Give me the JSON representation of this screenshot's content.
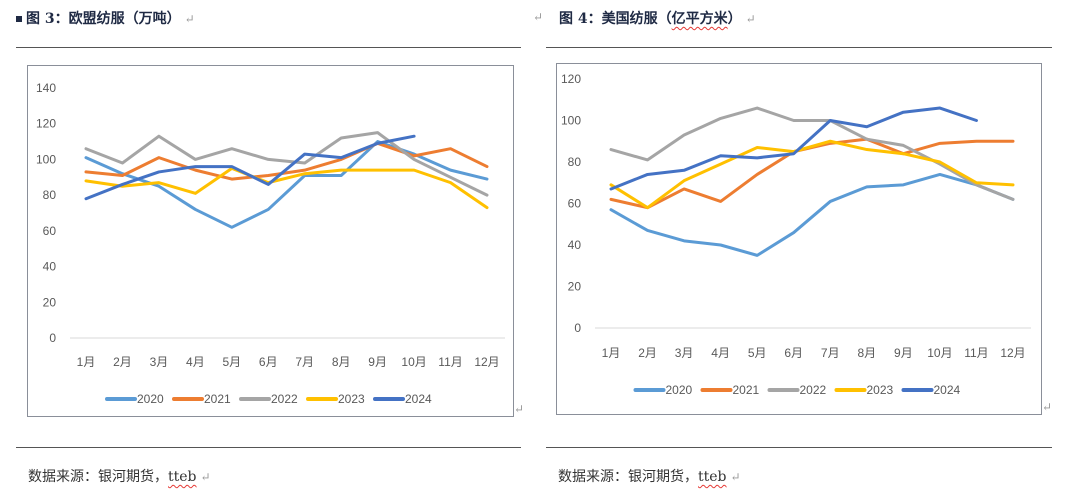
{
  "figures": [
    {
      "title": "图 3：欧盟纺服（万吨）",
      "source": "数据来源：银河期货，",
      "source_link": "tteb"
    },
    {
      "title": "图 4：美国纺服（",
      "title_squiggle": "亿平方米",
      "title_end": "）",
      "source": "数据来源：银河期货，",
      "source_link": "tteb"
    }
  ],
  "para_mark": "↵",
  "chart_data": [
    {
      "type": "line",
      "title": "欧盟纺服（万吨）",
      "xlabel": "",
      "ylabel": "",
      "categories": [
        "1月",
        "2月",
        "3月",
        "4月",
        "5月",
        "6月",
        "7月",
        "8月",
        "9月",
        "10月",
        "11月",
        "12月"
      ],
      "ylim": [
        0,
        140
      ],
      "yticks": [
        0,
        20,
        40,
        60,
        80,
        100,
        120,
        140
      ],
      "grid": false,
      "legend": "bottom",
      "series": [
        {
          "name": "2020",
          "color": "#5b9bd5",
          "values": [
            101,
            92,
            85,
            72,
            62,
            72,
            91,
            91,
            110,
            103,
            94,
            89
          ]
        },
        {
          "name": "2021",
          "color": "#ed7d31",
          "values": [
            93,
            91,
            101,
            94,
            89,
            91,
            94,
            100,
            109,
            102,
            106,
            96
          ]
        },
        {
          "name": "2022",
          "color": "#a5a5a5",
          "values": [
            106,
            98,
            113,
            100,
            106,
            100,
            98,
            112,
            115,
            100,
            90,
            80
          ]
        },
        {
          "name": "2023",
          "color": "#ffc000",
          "values": [
            88,
            85,
            87,
            81,
            95,
            87,
            92,
            94,
            94,
            94,
            87,
            73
          ]
        },
        {
          "name": "2024",
          "color": "#4472c4",
          "values": [
            78,
            86,
            93,
            96,
            96,
            86,
            103,
            101,
            109,
            113
          ]
        }
      ]
    },
    {
      "type": "line",
      "title": "美国纺服（亿平方米）",
      "xlabel": "",
      "ylabel": "",
      "categories": [
        "1月",
        "2月",
        "3月",
        "4月",
        "5月",
        "6月",
        "7月",
        "8月",
        "9月",
        "10月",
        "11月",
        "12月"
      ],
      "ylim": [
        0,
        120
      ],
      "yticks": [
        0,
        20,
        40,
        60,
        80,
        100,
        120
      ],
      "grid": false,
      "legend": "bottom",
      "series": [
        {
          "name": "2020",
          "color": "#5b9bd5",
          "values": [
            57,
            47,
            42,
            40,
            35,
            46,
            61,
            68,
            69,
            74,
            69,
            62
          ]
        },
        {
          "name": "2021",
          "color": "#ed7d31",
          "values": [
            62,
            58,
            67,
            61,
            74,
            85,
            89,
            91,
            84,
            89,
            90,
            90
          ]
        },
        {
          "name": "2022",
          "color": "#a5a5a5",
          "values": [
            86,
            81,
            93,
            101,
            106,
            100,
            100,
            91,
            88,
            79,
            69,
            62
          ]
        },
        {
          "name": "2023",
          "color": "#ffc000",
          "values": [
            69,
            58,
            71,
            79,
            87,
            85,
            90,
            86,
            84,
            80,
            70,
            69
          ]
        },
        {
          "name": "2024",
          "color": "#4472c4",
          "values": [
            67,
            74,
            76,
            83,
            82,
            84,
            100,
            97,
            104,
            106,
            100
          ]
        }
      ]
    }
  ]
}
